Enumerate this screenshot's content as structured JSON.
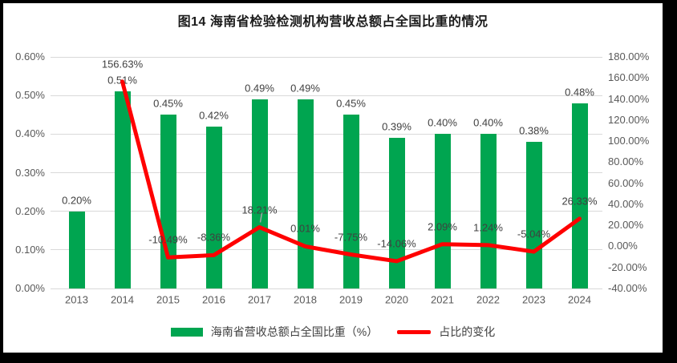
{
  "chart_data": {
    "type": "combo",
    "title": "图14 海南省检验检测机构营收总额占全国比重的情况",
    "categories": [
      "2013",
      "2014",
      "2015",
      "2016",
      "2017",
      "2018",
      "2019",
      "2020",
      "2021",
      "2022",
      "2023",
      "2024"
    ],
    "series": [
      {
        "name": "海南省营收总额占全国比重（%）",
        "type": "bar",
        "axis": "left",
        "color": "#00A550",
        "values": [
          0.2,
          0.51,
          0.45,
          0.42,
          0.49,
          0.49,
          0.45,
          0.39,
          0.4,
          0.4,
          0.38,
          0.48
        ],
        "labels": [
          "0.20%",
          "0.51%",
          "0.45%",
          "0.42%",
          "0.49%",
          "0.49%",
          "0.45%",
          "0.39%",
          "0.40%",
          "0.40%",
          "0.38%",
          "0.48%"
        ]
      },
      {
        "name": "占比的变化",
        "type": "line",
        "axis": "right",
        "color": "#FF0000",
        "values": [
          null,
          156.63,
          -10.49,
          -8.36,
          18.21,
          0.01,
          -7.75,
          -14.06,
          2.09,
          1.24,
          -5.04,
          26.33
        ],
        "labels": [
          "",
          "156.63%",
          "-10.49%",
          "-8.36%",
          "18.21%",
          "0.01%",
          "-7.75%",
          "-14.06%",
          "2.09%",
          "1.24%",
          "-5.04%",
          "26.33%"
        ]
      }
    ],
    "left_axis": {
      "min": 0,
      "max": 0.6,
      "ticks": [
        "0.00%",
        "0.10%",
        "0.20%",
        "0.30%",
        "0.40%",
        "0.50%",
        "0.60%"
      ]
    },
    "right_axis": {
      "min": -40,
      "max": 180,
      "ticks": [
        "-40.00%",
        "-20.00%",
        "0.00%",
        "20.00%",
        "40.00%",
        "60.00%",
        "80.00%",
        "100.00%",
        "120.00%",
        "140.00%",
        "160.00%",
        "180.00%"
      ]
    },
    "grid": true,
    "legend_position": "bottom",
    "leader_lines": [
      {
        "series": 1,
        "index": 4
      }
    ],
    "theme": {
      "background": "#FFFFFF",
      "frame": "#000000",
      "grid": "#D9D9D9",
      "axis_text": "#595959",
      "label_text": "#404040",
      "leader": "#A6A6A6"
    }
  }
}
